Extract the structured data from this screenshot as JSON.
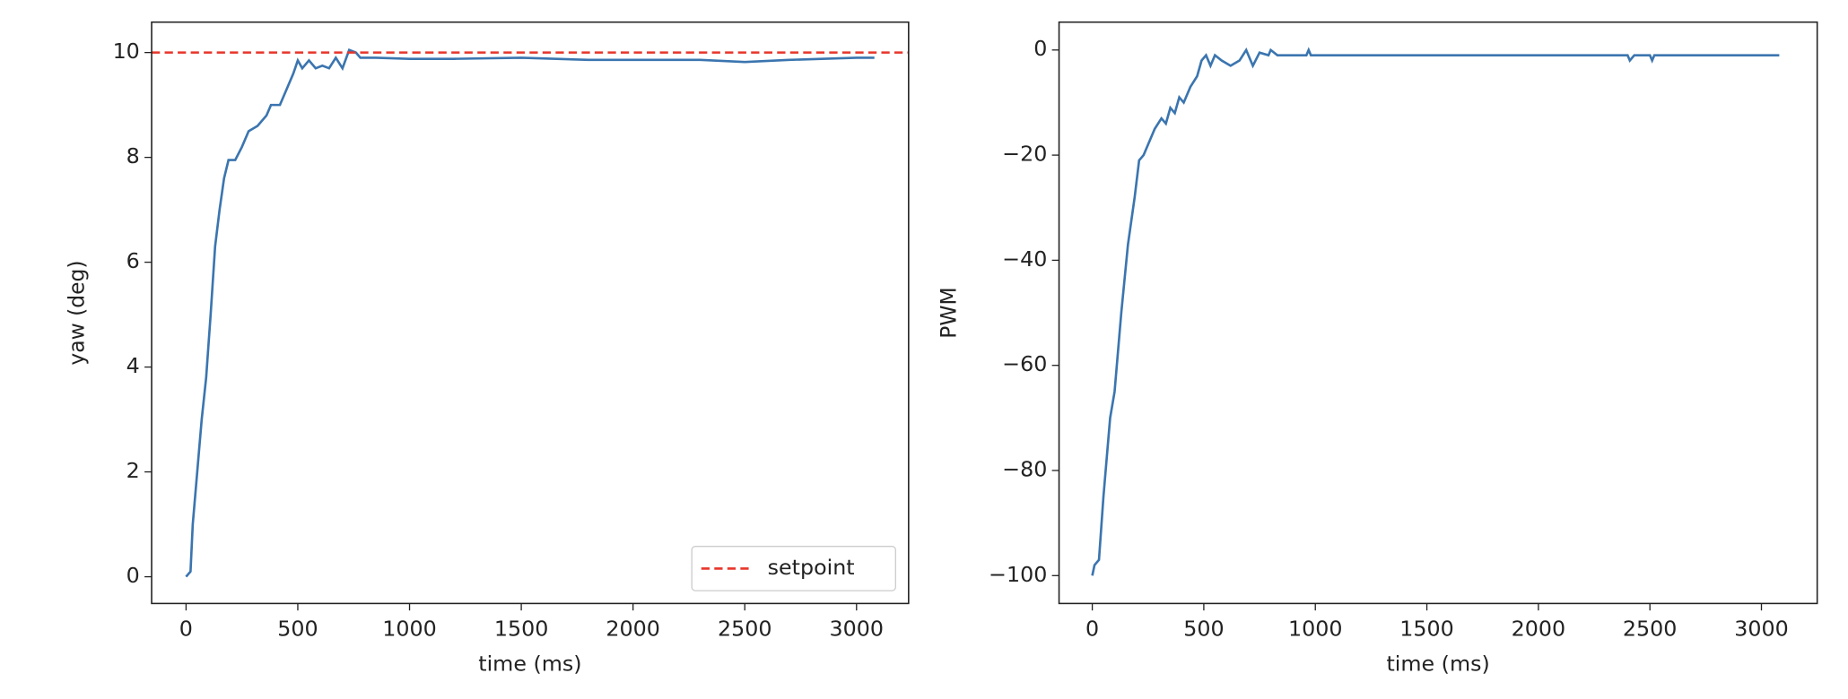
{
  "chart_data": [
    {
      "type": "line",
      "xlabel": "time (ms)",
      "ylabel": "yaw (deg)",
      "xlim": [
        -154,
        3233
      ],
      "ylim": [
        -0.51,
        10.58
      ],
      "xticks": [
        0,
        500,
        1000,
        1500,
        2000,
        2500,
        3000
      ],
      "yticks": [
        0,
        2,
        4,
        6,
        8,
        10
      ],
      "x": [
        0,
        20,
        30,
        50,
        70,
        90,
        110,
        130,
        150,
        170,
        190,
        220,
        250,
        280,
        320,
        360,
        380,
        420,
        450,
        480,
        500,
        520,
        550,
        580,
        610,
        640,
        670,
        700,
        730,
        760,
        780,
        850,
        1000,
        1200,
        1500,
        1800,
        2000,
        2300,
        2500,
        2700,
        3000,
        3080
      ],
      "series": [
        {
          "color": "#3b75af",
          "values": [
            0,
            0.1,
            1,
            2,
            3,
            3.8,
            5,
            6.3,
            7,
            7.6,
            7.95,
            7.95,
            8.2,
            8.5,
            8.6,
            8.8,
            9.0,
            9.0,
            9.3,
            9.6,
            9.85,
            9.7,
            9.85,
            9.7,
            9.75,
            9.7,
            9.9,
            9.7,
            10.05,
            10.0,
            9.9,
            9.9,
            9.88,
            9.88,
            9.9,
            9.86,
            9.86,
            9.86,
            9.82,
            9.86,
            9.9,
            9.9
          ]
        }
      ],
      "hlines": [
        {
          "name": "setpoint",
          "value": 10,
          "color": "#e8352a"
        }
      ],
      "legend": "lower right"
    },
    {
      "type": "line",
      "xlabel": "time (ms)",
      "ylabel": "PWM",
      "xlim": [
        -149,
        3250
      ],
      "ylim": [
        -105.3,
        5.3
      ],
      "xticks": [
        0,
        500,
        1000,
        1500,
        2000,
        2500,
        3000
      ],
      "yticks": [
        {
          "value": -100,
          "label": "−100"
        },
        {
          "value": -80,
          "label": "−80"
        },
        {
          "value": -60,
          "label": "−60"
        },
        {
          "value": -40,
          "label": "−40"
        },
        {
          "value": -20,
          "label": "−20"
        },
        0
      ],
      "x": [
        0,
        10,
        30,
        50,
        80,
        100,
        130,
        160,
        190,
        210,
        230,
        260,
        280,
        310,
        330,
        350,
        370,
        390,
        410,
        440,
        470,
        490,
        510,
        530,
        550,
        580,
        620,
        660,
        690,
        720,
        750,
        790,
        800,
        830,
        960,
        970,
        980,
        2400,
        2410,
        2430,
        2500,
        2510,
        2520,
        3080
      ],
      "series": [
        {
          "color": "#3b75af",
          "values": [
            -100,
            -98,
            -97,
            -85,
            -70,
            -65,
            -50,
            -37,
            -28,
            -21,
            -20,
            -17,
            -15,
            -13,
            -14,
            -11,
            -12,
            -9,
            -10,
            -7,
            -5,
            -2,
            -1,
            -3,
            -1,
            -2,
            -3,
            -2,
            0,
            -3,
            -0.5,
            -1,
            0,
            -1,
            -1,
            0,
            -1,
            -1,
            -2,
            -1,
            -1,
            -2,
            -1,
            -1
          ]
        }
      ]
    }
  ]
}
